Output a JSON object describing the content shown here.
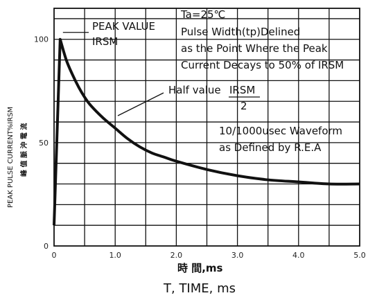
{
  "chart_data": {
    "type": "line",
    "title": "",
    "xlabel_cn": "時 間,ms",
    "xlabel": "T, TIME, ms",
    "ylabel": "PEAK PULSE CURRENT%IRSM",
    "ylabel_cn": "峰 值 脈 沖 電 流",
    "xlim": [
      0,
      5.0
    ],
    "ylim": [
      0,
      115
    ],
    "x_ticks": [
      "0",
      "1.0",
      "2.0",
      "3.0",
      "4.0",
      "5.0"
    ],
    "y_ticks": [
      "0",
      "50",
      "100"
    ],
    "grid": true,
    "series": [
      {
        "x": [
          0,
          0.1,
          0.2,
          0.3,
          0.4,
          0.5,
          0.6,
          0.8,
          1.0,
          1.2,
          1.4,
          1.6,
          1.8,
          2.0,
          2.5,
          3.0,
          3.5,
          4.0,
          4.5,
          5.0
        ],
        "y": [
          10,
          100,
          90,
          83,
          77,
          72,
          68,
          62,
          57,
          52,
          48,
          45,
          43,
          41,
          37,
          34,
          32,
          31,
          30,
          30
        ]
      }
    ],
    "annotations": {
      "conditions_line1": "Ta=25℃",
      "conditions_line2": "Pulse Width(tp)Delined",
      "conditions_line3": "as the Point Where the Peak",
      "conditions_line4": "Current Decays to 50% of IRSM",
      "peak_label_line1": "PEAK VALUE",
      "peak_label_line2": "IRSM",
      "half_value_label": "Half value",
      "half_value_num": "IRSM",
      "half_value_den": "2",
      "waveform_line1": "10/1000usec Waveform",
      "waveform_line2": "as Defined by R.E.A"
    }
  }
}
